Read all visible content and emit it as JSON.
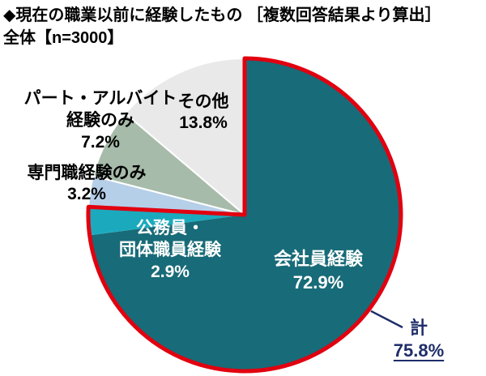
{
  "chart_data": {
    "type": "pie",
    "title": "◆現在の職業以前に経験したもの ［複数回答結果より算出］",
    "subtitle": "全体【n=3000】",
    "sample_size": 3000,
    "start_angle_deg": 0,
    "direction": "clockwise",
    "slices": [
      {
        "id": "company-employee",
        "name": "会社員経験",
        "label_lines": [
          "会社員経験"
        ],
        "value_pct": 72.9,
        "value_label": "72.9%",
        "color": "#186b78",
        "text_color": "#ffffff"
      },
      {
        "id": "civil-servant",
        "name": "公務員・団体職員経験",
        "label_lines": [
          "公務員・",
          "団体職員経験"
        ],
        "value_pct": 2.9,
        "value_label": "2.9%",
        "color": "#1baabd",
        "text_color": "#ffffff"
      },
      {
        "id": "professional",
        "name": "専門職経験のみ",
        "label_lines": [
          "専門職経験のみ"
        ],
        "value_pct": 3.2,
        "value_label": "3.2%",
        "color": "#b6cfe9",
        "text_color": "#000000"
      },
      {
        "id": "part-time",
        "name": "パート・アルバイト経験のみ",
        "label_lines": [
          "パート・アルバイト",
          "経験のみ"
        ],
        "value_pct": 7.2,
        "value_label": "7.2%",
        "color": "#a6bba9",
        "text_color": "#000000"
      },
      {
        "id": "other",
        "name": "その他",
        "label_lines": [
          "その他"
        ],
        "value_pct": 13.8,
        "value_label": "13.8%",
        "color": "#e8e9e8",
        "text_color": "#000000"
      }
    ],
    "total": {
      "label": "計",
      "value_label": "75.8%",
      "total_pct": 75.8,
      "covers_slices": [
        0,
        1
      ],
      "outline_color": "#e1000f",
      "text_color": "#1f2d69"
    }
  }
}
